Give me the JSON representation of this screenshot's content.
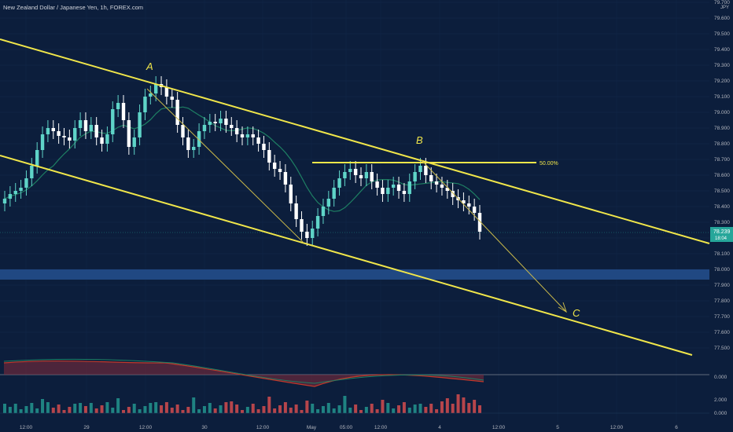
{
  "header": {
    "title": "New Zealand Dollar / Japanese Yen, 1h, FOREX.com",
    "currency": "JPY"
  },
  "price_axis": {
    "ticks": [
      "79.700",
      "79.600",
      "79.500",
      "79.400",
      "79.300",
      "79.200",
      "79.100",
      "79.000",
      "78.900",
      "78.800",
      "78.700",
      "78.600",
      "78.500",
      "78.400",
      "78.300",
      "78.200",
      "78.100",
      "78.000",
      "77.900",
      "77.800",
      "77.700",
      "77.600",
      "77.500"
    ],
    "current_price": "78.239",
    "countdown": "18:04"
  },
  "lower_axis": {
    "oscillator_zero": "0.000",
    "volume_tick": "2.000",
    "volume_zero": "0.000"
  },
  "time_axis": {
    "labels": [
      "12:00",
      "29",
      "12:00",
      "30",
      "12:00",
      "May",
      "05:00",
      "12:00",
      "4",
      "12:00",
      "5",
      "12:00",
      "6"
    ]
  },
  "annotations": {
    "wave_a": "A",
    "wave_b": "B",
    "wave_c": "C",
    "fib_level": "50.00%"
  },
  "colors": {
    "background": "#0c1e3c",
    "bull": "#26a69a",
    "bear": "#ef5350",
    "trendline": "#f0e64a",
    "moving_average": "#1e7f63",
    "axis_text": "#b2b5be",
    "price_badge": "#26a69a"
  },
  "chart_data": {
    "type": "candlestick",
    "symbol": "NZDJPY",
    "timeframe": "1h",
    "y_range": [
      77.45,
      79.72
    ],
    "close": [
      78.45,
      78.48,
      78.5,
      78.52,
      78.58,
      78.66,
      78.76,
      78.86,
      78.9,
      78.88,
      78.85,
      78.84,
      78.82,
      78.9,
      78.95,
      78.88,
      78.92,
      78.84,
      78.8,
      78.86,
      79.02,
      79.06,
      78.95,
      78.78,
      78.84,
      79.0,
      79.1,
      79.12,
      79.18,
      79.16,
      79.1,
      79.08,
      78.92,
      78.84,
      78.76,
      78.78,
      78.88,
      78.92,
      78.94,
      78.93,
      78.96,
      78.92,
      78.9,
      78.86,
      78.84,
      78.86,
      78.84,
      78.8,
      78.76,
      78.68,
      78.64,
      78.62,
      78.54,
      78.42,
      78.32,
      78.24,
      78.2,
      78.26,
      78.34,
      78.4,
      78.45,
      78.52,
      78.58,
      78.62,
      78.64,
      78.6,
      78.58,
      78.62,
      78.56,
      78.52,
      78.48,
      78.52,
      78.54,
      78.5,
      78.48,
      78.56,
      78.62,
      78.66,
      78.6,
      78.56,
      78.54,
      78.52,
      78.5,
      78.46,
      78.44,
      78.42,
      78.4,
      78.36,
      78.24
    ]
  }
}
